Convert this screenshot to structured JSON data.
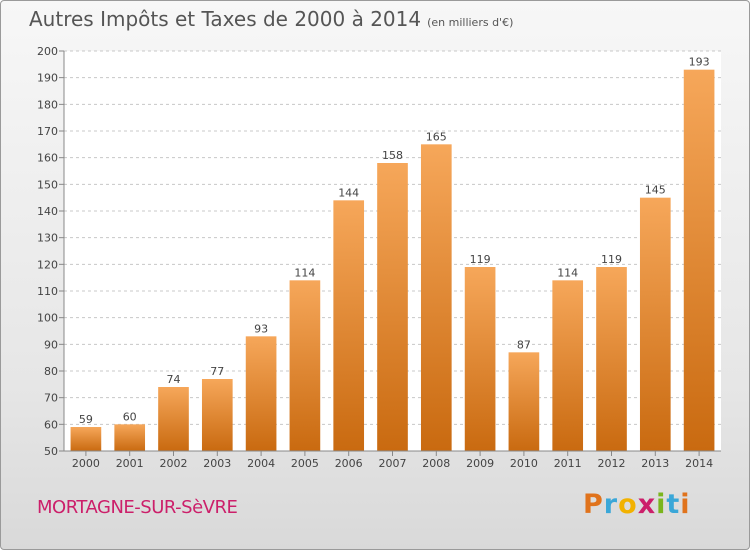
{
  "title": "Autres Impôts et Taxes de 2000 à 2014",
  "subtitle": "(en milliers d'€)",
  "commune": "MORTAGNE-SUR-SèVRE",
  "logo": {
    "text": "Proxiti",
    "letters": [
      "P",
      "r",
      "o",
      "x",
      "i",
      "t",
      "i"
    ],
    "colors": [
      "#e0731c",
      "#3aa7d8",
      "#f2b200",
      "#cc1f6a",
      "#7ab51d",
      "#3aa7d8",
      "#e0731c"
    ]
  },
  "colors": {
    "bar_top": "#f6a75a",
    "bar_bottom": "#c96a10",
    "axis": "#888888",
    "grid": "#c8c8c8",
    "plot_bg": "#ffffff"
  },
  "chart_data": {
    "type": "bar",
    "title": "Autres Impôts et Taxes de 2000 à 2014",
    "subtitle": "(en milliers d'€)",
    "xlabel": "",
    "ylabel": "",
    "ylim": [
      50,
      200
    ],
    "yticks": [
      50,
      60,
      70,
      80,
      90,
      100,
      110,
      120,
      130,
      140,
      150,
      160,
      170,
      180,
      190,
      200
    ],
    "grid": true,
    "categories": [
      "2000",
      "2001",
      "2002",
      "2003",
      "2004",
      "2005",
      "2006",
      "2007",
      "2008",
      "2009",
      "2010",
      "2011",
      "2012",
      "2013",
      "2014"
    ],
    "values": [
      59,
      60,
      74,
      77,
      93,
      114,
      144,
      158,
      165,
      119,
      87,
      114,
      119,
      145,
      193
    ]
  }
}
